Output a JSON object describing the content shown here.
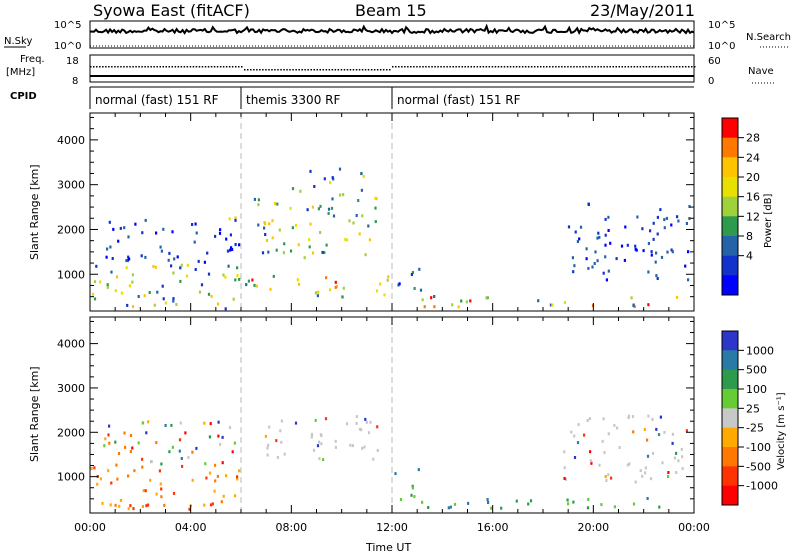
{
  "header": {
    "title": "Syowa East (fitACF)",
    "beam": "Beam 15",
    "date": "23/May/2011"
  },
  "top_panels": {
    "nsky_label": "N.Sky",
    "nsky_ticks": [
      "10^5",
      "10^0"
    ],
    "nsearch_label": "N.Search",
    "nsearch_ticks": [
      "10^5",
      "10^0"
    ],
    "freq_label_1": "Freq.",
    "freq_label_2": "[MHz]",
    "freq_ticks": [
      "18",
      "8"
    ],
    "nave_label": "Nave",
    "nave_ticks": [
      "60",
      "0"
    ],
    "cpid_label": "CPID",
    "cpid_segments": [
      {
        "label": "normal (fast) 151 RF",
        "start_hour": 0,
        "end_hour": 6
      },
      {
        "label": "themis 3300 RF",
        "start_hour": 6,
        "end_hour": 12
      },
      {
        "label": "normal (fast) 151 RF",
        "start_hour": 12,
        "end_hour": 24
      }
    ]
  },
  "axes": {
    "ylabel": "Slant Range [km]",
    "xlabel": "Time UT",
    "yticks": [
      "4000",
      "3000",
      "2000",
      "1000"
    ],
    "xticks": [
      "00:00",
      "04:00",
      "08:00",
      "12:00",
      "16:00",
      "20:00",
      "00:00"
    ]
  },
  "power_colorbar": {
    "label": "Power [dB]",
    "ticks": [
      "28",
      "24",
      "20",
      "16",
      "12",
      "8",
      "4"
    ],
    "colors": [
      "#ff0000",
      "#ff7800",
      "#ffc400",
      "#e8e000",
      "#9ed13a",
      "#2e9a4e",
      "#2563a8",
      "#1133cc",
      "#0000ff"
    ]
  },
  "velocity_colorbar": {
    "label": "Velocity [m s⁻¹]",
    "ticks": [
      "1000",
      "500",
      "100",
      "25",
      "-25",
      "-100",
      "-500",
      "-1000"
    ],
    "colors": [
      "#2c36c8",
      "#2a7aa8",
      "#2e9a4e",
      "#66cc33",
      "#c8c8c8",
      "#ffaa00",
      "#ff7800",
      "#ff3300",
      "#ff0000"
    ]
  },
  "chart_data": [
    {
      "type": "heatmap",
      "title": "Beam 15",
      "xlabel": "Time UT",
      "ylabel": "Slant Range [km]",
      "xlim": [
        0,
        24
      ],
      "ylim": [
        180,
        4600
      ],
      "variable": "Power [dB]",
      "colorbar_range": [
        0,
        32
      ],
      "regions": [
        {
          "t0": 0.0,
          "t1": 6.0,
          "r0": 250,
          "r1": 1300,
          "level": "mixed 4-28"
        },
        {
          "t0": 0.5,
          "t1": 6.0,
          "r0": 1300,
          "r1": 2300,
          "level": "low 4-12"
        },
        {
          "t0": 4.8,
          "t1": 6.0,
          "r0": 2000,
          "r1": 2300,
          "level": "12-20"
        },
        {
          "t0": 6.0,
          "t1": 12.0,
          "r0": 500,
          "r1": 1000,
          "level": "16-28"
        },
        {
          "t0": 6.5,
          "t1": 11.5,
          "r0": 1400,
          "r1": 2800,
          "level": "8-20"
        },
        {
          "t0": 8.0,
          "t1": 11.0,
          "r0": 2800,
          "r1": 3400,
          "level": "8-16"
        },
        {
          "t0": 12.0,
          "t1": 13.2,
          "r0": 500,
          "r1": 1200,
          "level": "4-12"
        },
        {
          "t0": 13.0,
          "t1": 24.0,
          "r0": 300,
          "r1": 550,
          "level": "8-28"
        },
        {
          "t0": 18.8,
          "t1": 23.8,
          "r0": 900,
          "r1": 2600,
          "level": "4-8"
        }
      ]
    },
    {
      "type": "heatmap",
      "title": "",
      "xlabel": "Time UT",
      "ylabel": "Slant Range [km]",
      "xlim": [
        0,
        24
      ],
      "ylim": [
        180,
        4600
      ],
      "variable": "Velocity [m s-1]",
      "colorbar_range": [
        -1000,
        1000
      ],
      "regions": [
        {
          "t0": 0.0,
          "t1": 6.0,
          "r0": 250,
          "r1": 1300,
          "level": "-500 to -100"
        },
        {
          "t0": 0.5,
          "t1": 6.0,
          "r0": 1300,
          "r1": 2300,
          "level": "mixed"
        },
        {
          "t0": 6.5,
          "t1": 11.5,
          "r0": 1400,
          "r1": 2400,
          "level": "-25 to 25"
        },
        {
          "t0": 12.0,
          "t1": 13.2,
          "r0": 500,
          "r1": 1200,
          "level": "100 to 500"
        },
        {
          "t0": 13.0,
          "t1": 24.0,
          "r0": 300,
          "r1": 550,
          "level": "100 to 500"
        },
        {
          "t0": 18.8,
          "t1": 23.8,
          "r0": 900,
          "r1": 2400,
          "level": "-25 to 25"
        }
      ]
    }
  ]
}
